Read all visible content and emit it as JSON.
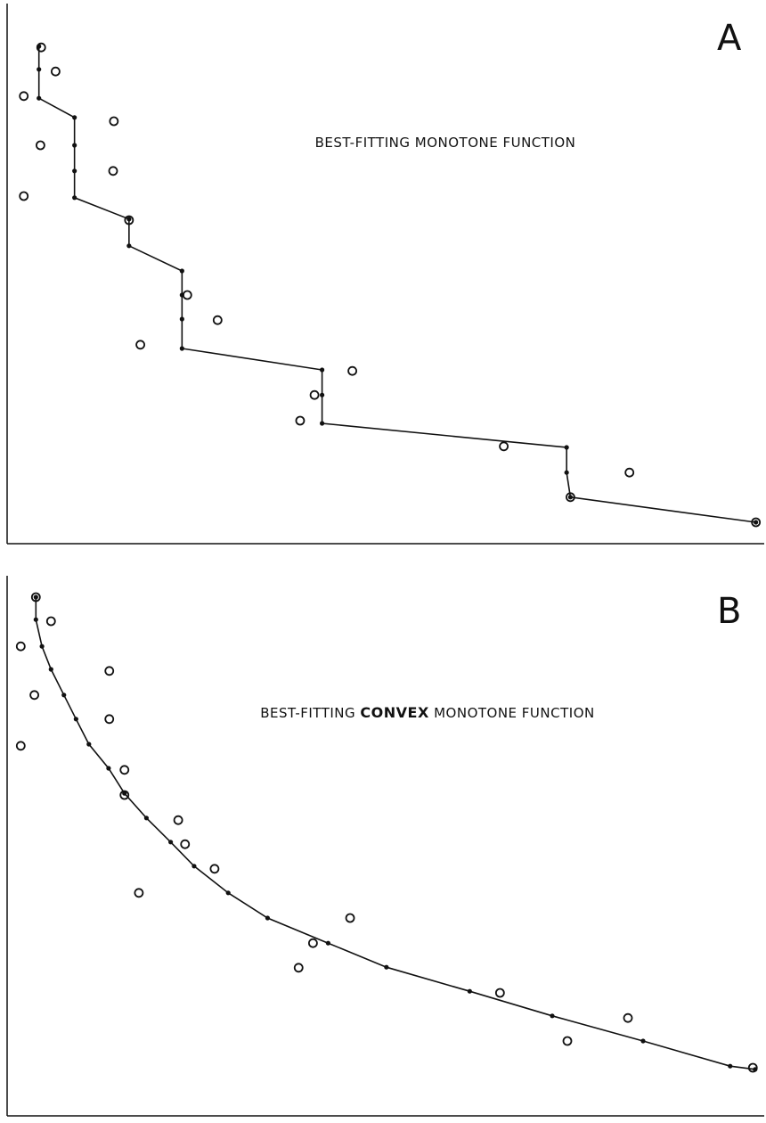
{
  "chart_data": [
    {
      "type": "scatter",
      "panel_label": "A",
      "title": [
        "BEST-FITTING",
        "MONOTONE FUNCTION"
      ],
      "emphasis": null,
      "xlim": [
        0,
        100
      ],
      "ylim": [
        0,
        100
      ],
      "points": {
        "x": [
          4.5,
          6.4,
          2.2,
          14.1,
          4.4,
          14.0,
          2.2,
          16.1,
          23.8,
          27.8,
          17.6,
          45.6,
          40.6,
          38.7,
          65.6,
          82.2,
          74.4,
          98.9
        ],
        "y": [
          92.8,
          88.3,
          83.7,
          79.0,
          74.5,
          69.7,
          65.0,
          60.5,
          46.5,
          41.8,
          37.2,
          32.3,
          27.8,
          23.0,
          18.2,
          13.3,
          8.7,
          4.0
        ]
      },
      "fit": {
        "x": [
          4.2,
          4.2,
          4.2,
          8.9,
          8.9,
          8.9,
          8.9,
          16.1,
          16.1,
          23.1,
          23.1,
          23.1,
          23.1,
          41.6,
          41.6,
          41.6,
          73.9,
          73.9,
          74.4,
          98.9
        ],
        "y": [
          93.0,
          88.7,
          83.3,
          79.7,
          74.5,
          69.7,
          64.7,
          60.7,
          55.7,
          51.0,
          46.5,
          42.0,
          36.5,
          32.5,
          27.8,
          22.5,
          18.0,
          13.3,
          8.7,
          4.0
        ]
      }
    },
    {
      "type": "scatter",
      "panel_label": "B",
      "title": [
        "BEST-FITTING",
        "CONVEX",
        "MONOTONE FUNCTION"
      ],
      "emphasis": 1,
      "xlim": [
        0,
        100
      ],
      "ylim": [
        0,
        100
      ],
      "points": {
        "x": [
          3.8,
          5.8,
          1.8,
          13.5,
          3.6,
          13.5,
          1.8,
          15.5,
          15.5,
          22.6,
          23.5,
          27.4,
          17.4,
          45.3,
          40.4,
          38.5,
          65.1,
          82.0,
          74.0,
          98.5
        ],
        "y": [
          97.0,
          92.5,
          87.8,
          83.2,
          78.7,
          74.2,
          69.2,
          64.7,
          60.0,
          55.3,
          50.8,
          46.2,
          41.7,
          37.0,
          32.3,
          27.7,
          23.0,
          18.3,
          14.0,
          9.0
        ]
      },
      "fit": {
        "x": [
          3.8,
          3.8,
          4.6,
          5.8,
          7.5,
          9.1,
          10.8,
          13.4,
          15.5,
          18.4,
          21.6,
          24.7,
          29.2,
          34.4,
          42.4,
          50.1,
          61.1,
          72.0,
          84.0,
          95.5,
          98.8
        ],
        "y": [
          97.0,
          92.8,
          87.8,
          83.5,
          78.7,
          74.2,
          69.5,
          65.0,
          60.3,
          55.7,
          51.2,
          46.7,
          41.7,
          37.0,
          32.3,
          27.8,
          23.3,
          18.7,
          14.0,
          9.3,
          8.7
        ]
      }
    }
  ]
}
